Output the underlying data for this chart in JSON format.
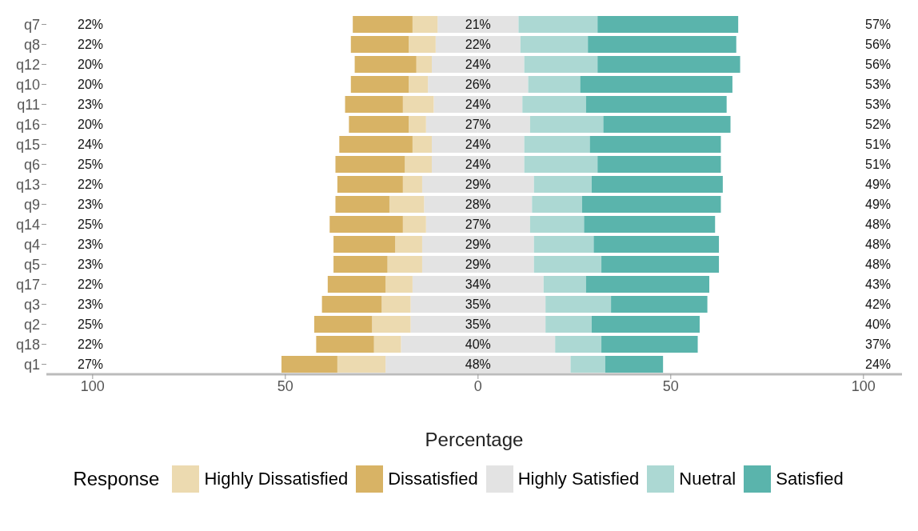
{
  "chart_data": {
    "type": "bar",
    "orientation": "horizontal",
    "stacked": true,
    "categories": [
      "q7",
      "q8",
      "q12",
      "q10",
      "q11",
      "q16",
      "q15",
      "q6",
      "q13",
      "q9",
      "q14",
      "q4",
      "q5",
      "q17",
      "q3",
      "q2",
      "q18",
      "q1"
    ],
    "series": [
      {
        "color": "#e3e3e3",
        "values": [
          -10.5,
          -11,
          -12,
          -13,
          -11.5,
          -13.5,
          -12,
          -12,
          -14.5,
          -14,
          -13.5,
          -14.5,
          -14.5,
          -17,
          -17.5,
          -17.5,
          -20,
          -24
        ]
      },
      {
        "name": "Highly Dissatisfied",
        "color": "#ecdab0",
        "values": [
          -6.5,
          -7,
          -4,
          -5,
          -8,
          -4.5,
          -5,
          -7,
          -5,
          -9,
          -6,
          -7,
          -9,
          -7,
          -7.5,
          -10,
          -7,
          -12.5
        ]
      },
      {
        "name": "Dissatisfied",
        "color": "#d8b365",
        "values": [
          -15.5,
          -15,
          -16,
          -15,
          -15,
          -15.5,
          -19,
          -18,
          -17,
          -14,
          -19,
          -16,
          -14,
          -15,
          -15.5,
          -15,
          -15,
          -14.5
        ]
      },
      {
        "name": "Highly Satisfied",
        "color": "#e3e3e3",
        "values": [
          10.5,
          11,
          12,
          13,
          11.5,
          13.5,
          12,
          12,
          14.5,
          14,
          13.5,
          14.5,
          14.5,
          17,
          17.5,
          17.5,
          20,
          24
        ]
      },
      {
        "name": "Nuetral",
        "color": "#acd8d3",
        "values": [
          20.5,
          17.5,
          19,
          13.5,
          16.5,
          19,
          17,
          19,
          15,
          13,
          14,
          15.5,
          17.5,
          11,
          17,
          12,
          12,
          9
        ]
      },
      {
        "name": "Satisfied",
        "color": "#5ab4ac",
        "values": [
          36.5,
          38.5,
          37,
          39.5,
          36.5,
          33,
          34,
          32,
          34,
          36,
          34,
          32.5,
          30.5,
          32,
          25,
          28,
          25,
          15
        ]
      }
    ],
    "annotations": [
      "22%",
      "22%",
      "20%",
      "20%",
      "23%",
      "20%",
      "24%",
      "25%",
      "22%",
      "23%",
      "25%",
      "23%",
      "23%",
      "22%",
      "23%",
      "25%",
      "22%",
      "27%",
      "21%",
      "22%",
      "24%",
      "26%",
      "24%",
      "27%",
      "24%",
      "24%",
      "29%",
      "28%",
      "27%",
      "29%",
      "29%",
      "34%",
      "35%",
      "35%",
      "40%",
      "48%",
      "57%",
      "56%",
      "56%",
      "53%",
      "53%",
      "52%",
      "51%",
      "51%",
      "49%",
      "49%",
      "48%",
      "48%",
      "48%",
      "43%",
      "42%",
      "40%",
      "37%",
      "24%"
    ],
    "xlim": [
      -112,
      110
    ],
    "xticks": [
      {
        "value": -100,
        "label": "100"
      },
      {
        "value": -50,
        "label": "50"
      },
      0,
      50,
      100
    ],
    "xlabel": "Percentage",
    "legend_title": "Response",
    "legend": "bottom"
  }
}
